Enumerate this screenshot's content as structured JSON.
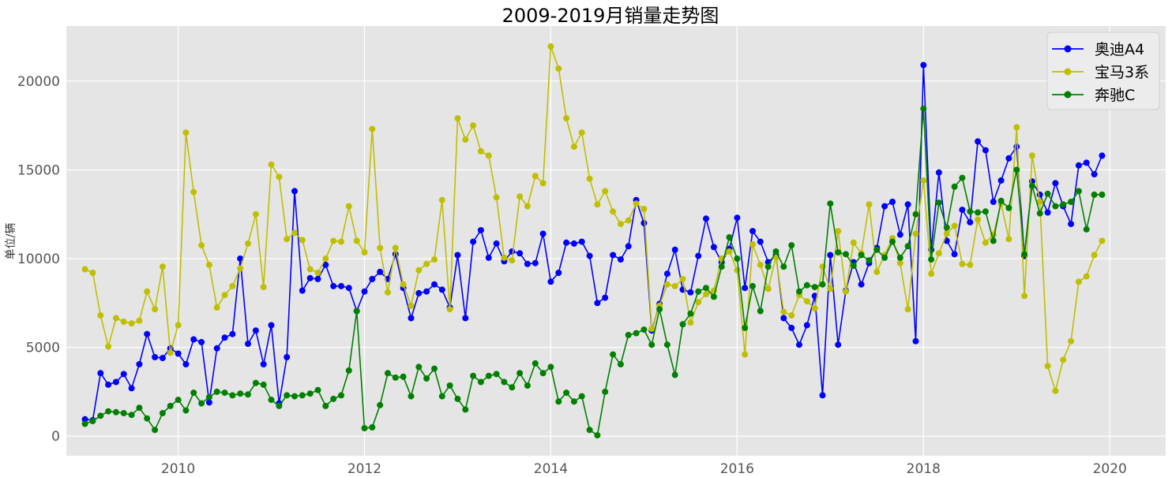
{
  "chart_data": {
    "type": "line",
    "title": "2009-2019月销量走势图",
    "xlabel": "",
    "ylabel": "单位/辆",
    "x_start": "2009-01",
    "x_end": "2019-12",
    "xlim": [
      2008.8,
      2020.6
    ],
    "ylim": [
      -1100,
      23100
    ],
    "x_ticks": [
      "2010",
      "2012",
      "2014",
      "2016",
      "2018",
      "2020"
    ],
    "y_ticks": [
      "0",
      "5000",
      "10000",
      "15000",
      "20000"
    ],
    "grid": true,
    "legend_position": "top-right",
    "series": [
      {
        "name": "奥迪A4",
        "color": "#0000ff",
        "values": [
          950,
          900,
          3550,
          2900,
          3050,
          3500,
          2700,
          4050,
          5750,
          4450,
          4400,
          4950,
          4650,
          4050,
          5450,
          5300,
          1900,
          4950,
          5550,
          5750,
          10000,
          5200,
          5950,
          4050,
          6250,
          1850,
          4450,
          13800,
          8200,
          8900,
          8850,
          9650,
          8450,
          8450,
          8350,
          7050,
          8150,
          8850,
          9250,
          8850,
          10250,
          8350,
          6650,
          8050,
          8150,
          8550,
          8250,
          7250,
          10200,
          6650,
          10950,
          11600,
          10050,
          10850,
          9850,
          10400,
          10300,
          9700,
          9750,
          11400,
          8700,
          9200,
          10900,
          10850,
          10950,
          10150,
          7500,
          7800,
          10200,
          9950,
          10700,
          13300,
          12000,
          5950,
          7450,
          9150,
          10500,
          8250,
          8100,
          10150,
          12250,
          10650,
          9800,
          10550,
          12300,
          8350,
          11550,
          10950,
          9800,
          10200,
          6650,
          6100,
          5150,
          6250,
          7900,
          2300,
          10200,
          5150,
          8200,
          9800,
          8550,
          9750,
          10600,
          12950,
          13200,
          11350,
          13050,
          5350,
          20900,
          10500,
          14850,
          11000,
          10250,
          12750,
          12050,
          16600,
          16100,
          13200,
          14400,
          15650,
          16300,
          10150,
          14350,
          13600,
          12600,
          14250,
          12950,
          11950,
          15250,
          15400,
          14750,
          15800
        ]
      },
      {
        "name": "宝马3系",
        "color": "#bfbf00",
        "values": [
          9400,
          9200,
          6800,
          5050,
          6650,
          6450,
          6350,
          6500,
          8150,
          7150,
          9550,
          4700,
          6250,
          17100,
          13750,
          10750,
          9650,
          7250,
          7950,
          8450,
          9450,
          10850,
          12500,
          8400,
          15300,
          14600,
          11100,
          11450,
          11050,
          9400,
          9200,
          10000,
          11000,
          10950,
          12950,
          11000,
          10350,
          17300,
          10600,
          8100,
          10600,
          8550,
          7350,
          9350,
          9700,
          9950,
          13300,
          7150,
          17900,
          16700,
          17500,
          16050,
          15800,
          13450,
          10050,
          9900,
          13500,
          12950,
          14650,
          14250,
          21950,
          20700,
          17900,
          16300,
          17100,
          14500,
          13050,
          13800,
          12650,
          11950,
          12150,
          13100,
          12800,
          6050,
          7350,
          8550,
          8450,
          8850,
          6400,
          7550,
          8000,
          8200,
          10000,
          10400,
          9350,
          4600,
          10800,
          9650,
          8300,
          10100,
          7000,
          6800,
          7950,
          7600,
          7200,
          9550,
          8300,
          11550,
          8150,
          10900,
          10300,
          13050,
          9250,
          10200,
          11150,
          9750,
          7150,
          11400,
          14400,
          9150,
          10300,
          11400,
          11850,
          9700,
          9650,
          12200,
          10900,
          11350,
          13100,
          11100,
          17400,
          7900,
          15800,
          13200,
          3950,
          2550,
          4300,
          5350,
          8700,
          9000,
          10200,
          11000
        ]
      },
      {
        "name": "奔驰C",
        "color": "#008000",
        "values": [
          700,
          850,
          1150,
          1400,
          1350,
          1300,
          1200,
          1600,
          1000,
          350,
          1300,
          1700,
          2050,
          1450,
          2450,
          1850,
          2200,
          2500,
          2450,
          2300,
          2400,
          2350,
          3000,
          2900,
          2050,
          1700,
          2300,
          2250,
          2300,
          2400,
          2600,
          1700,
          2100,
          2300,
          3700,
          7050,
          450,
          500,
          1750,
          3550,
          3300,
          3350,
          2250,
          3900,
          3250,
          3800,
          2250,
          2850,
          2100,
          1500,
          3400,
          3050,
          3400,
          3500,
          3050,
          2750,
          3550,
          2850,
          4100,
          3550,
          3900,
          1950,
          2450,
          1950,
          2250,
          350,
          50,
          2500,
          4600,
          4050,
          5700,
          5800,
          6000,
          5150,
          7150,
          5150,
          3450,
          6300,
          6900,
          8150,
          8350,
          7850,
          9550,
          11200,
          10000,
          6100,
          8450,
          7050,
          9550,
          10400,
          9550,
          10750,
          8150,
          8500,
          8400,
          8550,
          13100,
          10350,
          10250,
          9600,
          10200,
          9900,
          10500,
          10050,
          10950,
          10050,
          10700,
          12500,
          18450,
          9950,
          13150,
          11750,
          14050,
          14550,
          12650,
          12600,
          12650,
          11000,
          13250,
          12850,
          15000,
          10250,
          14100,
          12550,
          13650,
          12950,
          13050,
          13200,
          13800,
          11650,
          13600,
          13600
        ]
      }
    ]
  }
}
